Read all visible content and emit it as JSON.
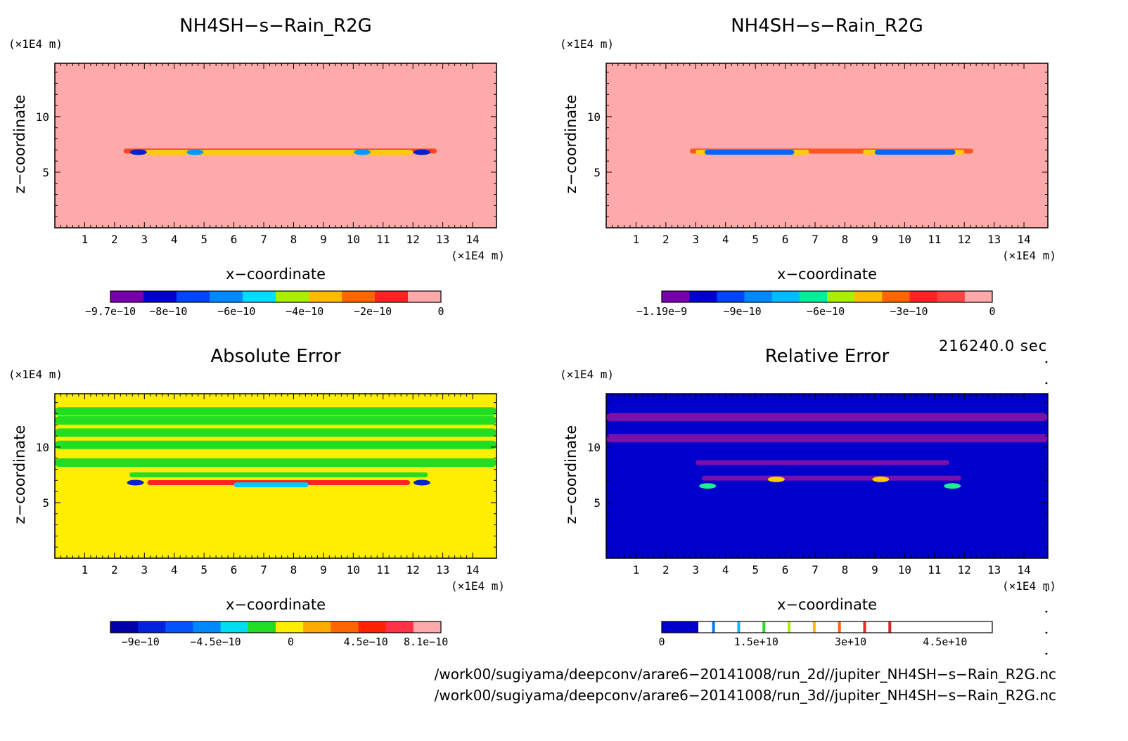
{
  "chart_data": [
    {
      "type": "heatmap",
      "title": "NH4SH−s−Rain_R2G",
      "xlabel": "x−coordinate",
      "ylabel": "z−coordinate",
      "x_unit": "(×1E4 m)",
      "y_unit": "(×1E4 m)",
      "xlim": [
        0,
        14.8
      ],
      "ylim": [
        0,
        14.8
      ],
      "x_ticks": [
        "1",
        "2",
        "3",
        "4",
        "5",
        "6",
        "7",
        "8",
        "9",
        "10",
        "11",
        "12",
        "13",
        "14"
      ],
      "y_ticks": [
        "5",
        "10"
      ],
      "background_color": "#ffaaaa",
      "features": [
        {
          "kind": "band",
          "x_range": [
            2.3,
            12.8
          ],
          "z": 6.9,
          "color": "#ff4422"
        },
        {
          "kind": "band",
          "x_range": [
            3.0,
            12.0
          ],
          "z": 6.8,
          "color": "#ffcc00"
        },
        {
          "kind": "blob",
          "x": 2.8,
          "z": 6.8,
          "color": "#0022cc"
        },
        {
          "kind": "blob",
          "x": 4.7,
          "z": 6.8,
          "color": "#0099ff"
        },
        {
          "kind": "blob",
          "x": 10.3,
          "z": 6.8,
          "color": "#0099ff"
        },
        {
          "kind": "blob",
          "x": 12.3,
          "z": 6.8,
          "color": "#0022cc"
        }
      ],
      "colorbar": {
        "colors": [
          "#7700aa",
          "#0000cc",
          "#0044ff",
          "#0088ff",
          "#00ddff",
          "#aaee00",
          "#ffbb00",
          "#ff6600",
          "#ff2222",
          "#ffaaaa"
        ],
        "labels": [
          "−9.7e−10",
          "−8e−10",
          "−6e−10",
          "−4e−10",
          "−2e−10",
          "0"
        ],
        "label_values": [
          -9.7e-10,
          -8e-10,
          -6e-10,
          -4e-10,
          -2e-10,
          0
        ],
        "min": -9.7e-10,
        "max": 0
      }
    },
    {
      "type": "heatmap",
      "title": "NH4SH−s−Rain_R2G",
      "xlabel": "x−coordinate",
      "ylabel": "z−coordinate",
      "x_unit": "(×1E4 m)",
      "y_unit": "(×1E4 m)",
      "xlim": [
        0,
        14.8
      ],
      "ylim": [
        0,
        14.8
      ],
      "x_ticks": [
        "1",
        "2",
        "3",
        "4",
        "5",
        "6",
        "7",
        "8",
        "9",
        "10",
        "11",
        "12",
        "13",
        "14"
      ],
      "y_ticks": [
        "5",
        "10"
      ],
      "background_color": "#ffaaaa",
      "features": [
        {
          "kind": "band",
          "x_range": [
            2.8,
            12.3
          ],
          "z": 6.9,
          "color": "#ff5522"
        },
        {
          "kind": "band",
          "x_range": [
            3.0,
            6.8
          ],
          "z": 6.8,
          "color": "#ffcc00"
        },
        {
          "kind": "band",
          "x_range": [
            8.6,
            12.0
          ],
          "z": 6.8,
          "color": "#ffcc00"
        },
        {
          "kind": "band",
          "x_range": [
            3.3,
            6.3
          ],
          "z": 6.8,
          "color": "#0066ff"
        },
        {
          "kind": "band",
          "x_range": [
            9.0,
            11.7
          ],
          "z": 6.8,
          "color": "#0066ff"
        }
      ],
      "colorbar": {
        "colors": [
          "#7700aa",
          "#0000cc",
          "#0044ff",
          "#0088ff",
          "#00bbff",
          "#00ee99",
          "#aaee00",
          "#ffbb00",
          "#ff6600",
          "#ff2222",
          "#ff4444",
          "#ffaaaa"
        ],
        "labels": [
          "−1.19e−9",
          "−9e−10",
          "−6e−10",
          "−3e−10",
          "0"
        ],
        "label_values": [
          -1.19e-09,
          -9e-10,
          -6e-10,
          -3e-10,
          0
        ],
        "min": -1.19e-09,
        "max": 0
      }
    },
    {
      "type": "heatmap",
      "title": "Absolute Error",
      "xlabel": "x−coordinate",
      "ylabel": "z−coordinate",
      "x_unit": "(×1E4 m)",
      "y_unit": "(×1E4 m)",
      "xlim": [
        0,
        14.8
      ],
      "ylim": [
        0,
        14.8
      ],
      "x_ticks": [
        "1",
        "2",
        "3",
        "4",
        "5",
        "6",
        "7",
        "8",
        "9",
        "10",
        "11",
        "12",
        "13",
        "14"
      ],
      "y_ticks": [
        "5",
        "10"
      ],
      "background_color": "#ffee00",
      "features": [
        {
          "kind": "band",
          "x_range": [
            0,
            14.8
          ],
          "z": 13.2,
          "color": "#22dd22"
        },
        {
          "kind": "band",
          "x_range": [
            0,
            14.8
          ],
          "z": 12.4,
          "color": "#22dd22"
        },
        {
          "kind": "band",
          "x_range": [
            0,
            14.8
          ],
          "z": 11.3,
          "color": "#22dd22"
        },
        {
          "kind": "band",
          "x_range": [
            0,
            14.8
          ],
          "z": 10.2,
          "color": "#22dd22"
        },
        {
          "kind": "band",
          "x_range": [
            0,
            14.8
          ],
          "z": 8.6,
          "color": "#22dd22"
        },
        {
          "kind": "band",
          "x_range": [
            2.5,
            12.5
          ],
          "z": 7.5,
          "color": "#22dd22"
        },
        {
          "kind": "band",
          "x_range": [
            3.1,
            11.9
          ],
          "z": 6.8,
          "color": "#ff2222"
        },
        {
          "kind": "band",
          "x_range": [
            6.0,
            8.5
          ],
          "z": 6.6,
          "color": "#00ccee"
        },
        {
          "kind": "blob",
          "x": 2.7,
          "z": 6.8,
          "color": "#0022cc"
        },
        {
          "kind": "blob",
          "x": 12.3,
          "z": 6.8,
          "color": "#0022cc"
        }
      ],
      "colorbar": {
        "colors": [
          "#0000aa",
          "#0022dd",
          "#0055ff",
          "#0088ff",
          "#00ddee",
          "#22dd22",
          "#ffee00",
          "#ffaa00",
          "#ff6600",
          "#ff2200",
          "#ff3344",
          "#ffaaaa"
        ],
        "labels": [
          "−9e−10",
          "−4.5e−10",
          "0",
          "4.5e−10",
          "8.1e−10"
        ],
        "label_values": [
          -9e-10,
          -4.5e-10,
          0,
          4.5e-10,
          8.1e-10
        ],
        "min": -1.08e-09,
        "max": 9e-10
      }
    },
    {
      "type": "heatmap",
      "title": "Relative Error",
      "xlabel": "x−coordinate",
      "ylabel": "z−coordinate",
      "x_unit": "(×1E4 m)",
      "y_unit": "(×1E4 m)",
      "xlim": [
        0,
        14.8
      ],
      "ylim": [
        0,
        14.8
      ],
      "x_ticks": [
        "1",
        "2",
        "3",
        "4",
        "5",
        "6",
        "7",
        "8",
        "9",
        "10",
        "11",
        "12",
        "13",
        "14"
      ],
      "y_ticks": [
        "5",
        "10"
      ],
      "background_color": "#0000cc",
      "features": [
        {
          "kind": "band",
          "x_range": [
            0,
            14.8
          ],
          "z": 12.7,
          "color": "#7711aa"
        },
        {
          "kind": "band",
          "x_range": [
            0,
            14.8
          ],
          "z": 10.8,
          "color": "#7711aa"
        },
        {
          "kind": "band",
          "x_range": [
            3.0,
            11.5
          ],
          "z": 8.6,
          "color": "#7711aa"
        },
        {
          "kind": "band",
          "x_range": [
            3.2,
            11.9
          ],
          "z": 7.2,
          "color": "#7711aa"
        },
        {
          "kind": "blob",
          "x": 3.4,
          "z": 6.5,
          "color": "#22ee88"
        },
        {
          "kind": "blob",
          "x": 5.7,
          "z": 7.1,
          "color": "#ffcc00"
        },
        {
          "kind": "blob",
          "x": 9.2,
          "z": 7.1,
          "color": "#ffcc00"
        },
        {
          "kind": "blob",
          "x": 11.6,
          "z": 6.5,
          "color": "#22ee88"
        }
      ],
      "colorbar": {
        "segments": [
          {
            "value": 0,
            "color": "#0000cc"
          },
          {
            "value": 8000000000.0,
            "color": "#0077ff"
          },
          {
            "value": 12000000000.0,
            "color": "#00bbff"
          },
          {
            "value": 16000000000.0,
            "color": "#22dd22"
          },
          {
            "value": 20000000000.0,
            "color": "#aaee00"
          },
          {
            "value": 24000000000.0,
            "color": "#ffbb00"
          },
          {
            "value": 28000000000.0,
            "color": "#ff6600"
          },
          {
            "value": 32000000000.0,
            "color": "#ff2222"
          },
          {
            "value": 36000000000.0,
            "color": "#dd2222"
          }
        ],
        "labels": [
          "0",
          "1.5e+10",
          "3e+10",
          "4.5e+10"
        ],
        "label_values": [
          0,
          15000000000.0,
          30000000000.0,
          45000000000.0
        ],
        "min": 0,
        "max": 52500000000.0
      }
    }
  ],
  "annotations": {
    "time_label": "216240.0 sec",
    "file_path_1": "/work00/sugiyama/deepconv/arare6−20141008/run_2d//jupiter_NH4SH−s−Rain_R2G.nc",
    "file_path_2": "/work00/sugiyama/deepconv/arare6−20141008/run_3d//jupiter_NH4SH−s−Rain_R2G.nc"
  }
}
